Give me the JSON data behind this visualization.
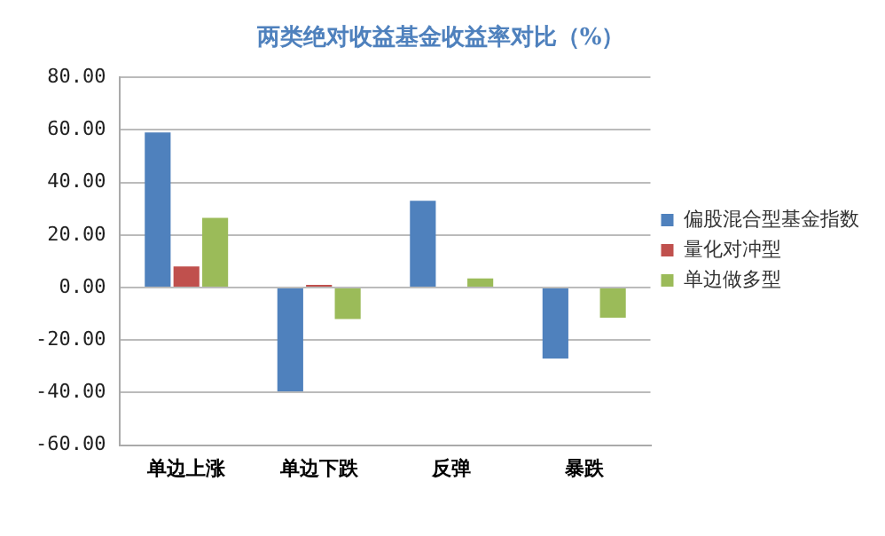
{
  "chart_data": {
    "type": "bar",
    "title": "两类绝对收益基金收益率对比（%）",
    "categories": [
      "单边上涨",
      "单边下跌",
      "反弹",
      "暴跌"
    ],
    "series": [
      {
        "name": "偏股混合型基金指数",
        "color": "#4f81bd",
        "values": [
          59,
          -39.5,
          33,
          -27
        ]
      },
      {
        "name": "量化对冲型",
        "color": "#c0504d",
        "values": [
          8,
          1,
          null,
          null
        ]
      },
      {
        "name": "单边做多型",
        "color": "#9bbb59",
        "values": [
          26.5,
          -12,
          3.5,
          -11.5
        ]
      }
    ],
    "ylim": [
      -60,
      80
    ],
    "yticks": [
      {
        "value": -60,
        "label": "-60.00"
      },
      {
        "value": -40,
        "label": "-40.00"
      },
      {
        "value": -20,
        "label": "-20.00"
      },
      {
        "value": 0,
        "label": "0.00"
      },
      {
        "value": 20,
        "label": "20.00"
      },
      {
        "value": 40,
        "label": "40.00"
      },
      {
        "value": 60,
        "label": "60.00"
      },
      {
        "value": 80,
        "label": "80.00"
      }
    ],
    "grid": "y",
    "legend": "right"
  }
}
